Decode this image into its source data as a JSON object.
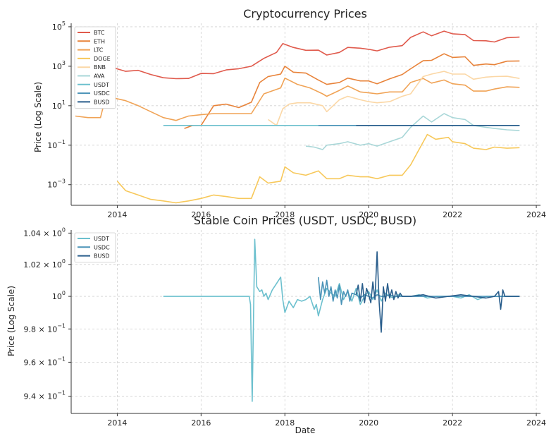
{
  "chart_data": [
    {
      "type": "line",
      "title": "Cryptocurrency Prices",
      "xlabel": "",
      "ylabel": "Price (Log Scale)",
      "yscale": "log",
      "xlim": [
        2012.9,
        2024.1
      ],
      "ylim": [
        9e-05,
        150000
      ],
      "grid": true,
      "legend_position": "top-left",
      "x_ticks": [
        2014,
        2016,
        2018,
        2020,
        2022,
        2024
      ],
      "y_ticks": [
        {
          "value": 0.001,
          "base": "10",
          "exp": "−3"
        },
        {
          "value": 0.1,
          "base": "10",
          "exp": "−1"
        },
        {
          "value": 10,
          "base": "10",
          "exp": "1"
        },
        {
          "value": 1000,
          "base": "10",
          "exp": "3"
        },
        {
          "value": 100000,
          "base": "10",
          "exp": "5"
        }
      ],
      "series": [
        {
          "name": "BTC",
          "color": "#e05a4c",
          "x": [
            2013.0,
            2013.3,
            2013.6,
            2013.9,
            2014.2,
            2014.5,
            2014.8,
            2015.1,
            2015.4,
            2015.7,
            2016.0,
            2016.3,
            2016.6,
            2016.9,
            2017.2,
            2017.5,
            2017.8,
            2017.95,
            2018.2,
            2018.5,
            2018.8,
            2019.0,
            2019.3,
            2019.5,
            2019.8,
            2020.0,
            2020.2,
            2020.5,
            2020.8,
            2021.0,
            2021.3,
            2021.5,
            2021.8,
            2022.0,
            2022.3,
            2022.5,
            2022.8,
            2023.0,
            2023.3,
            2023.6
          ],
          "y": [
            135,
            120,
            125,
            850,
            550,
            620,
            380,
            260,
            235,
            240,
            430,
            420,
            650,
            750,
            1000,
            2500,
            5000,
            14000,
            9000,
            6400,
            6500,
            3700,
            5000,
            9000,
            8200,
            7200,
            6000,
            9200,
            11000,
            29000,
            55000,
            35000,
            60000,
            44000,
            40000,
            20000,
            19500,
            17000,
            28000,
            30000
          ]
        },
        {
          "name": "ETH",
          "color": "#e8833a",
          "x": [
            2015.6,
            2015.8,
            2016.0,
            2016.3,
            2016.6,
            2016.9,
            2017.2,
            2017.4,
            2017.6,
            2017.9,
            2018.0,
            2018.2,
            2018.5,
            2018.8,
            2019.0,
            2019.3,
            2019.5,
            2019.8,
            2020.0,
            2020.2,
            2020.5,
            2020.8,
            2021.0,
            2021.3,
            2021.5,
            2021.8,
            2022.0,
            2022.3,
            2022.5,
            2022.8,
            2023.0,
            2023.3,
            2023.6
          ],
          "y": [
            0.7,
            1.0,
            1.0,
            10,
            12,
            8,
            15,
            150,
            300,
            400,
            1000,
            500,
            450,
            200,
            120,
            150,
            250,
            180,
            180,
            130,
            230,
            380,
            740,
            1900,
            2000,
            4300,
            2800,
            3000,
            1100,
            1300,
            1200,
            1800,
            1850
          ]
        },
        {
          "name": "LTC",
          "color": "#f0a356",
          "x": [
            2013.0,
            2013.3,
            2013.6,
            2013.75,
            2013.9,
            2014.2,
            2014.5,
            2014.8,
            2015.1,
            2015.4,
            2015.7,
            2016.0,
            2016.3,
            2016.6,
            2016.9,
            2017.2,
            2017.5,
            2017.9,
            2018.0,
            2018.3,
            2018.6,
            2018.9,
            2019.0,
            2019.3,
            2019.5,
            2019.8,
            2020.0,
            2020.2,
            2020.5,
            2020.8,
            2021.0,
            2021.3,
            2021.5,
            2021.8,
            2022.0,
            2022.3,
            2022.5,
            2022.8,
            2023.0,
            2023.3,
            2023.6
          ],
          "y": [
            3,
            2.5,
            2.5,
            45,
            25,
            18,
            10,
            5,
            2.5,
            1.8,
            3,
            3.5,
            4,
            4,
            4,
            4,
            40,
            80,
            250,
            120,
            80,
            40,
            30,
            60,
            100,
            50,
            45,
            40,
            50,
            50,
            150,
            240,
            140,
            200,
            130,
            110,
            55,
            55,
            70,
            90,
            85
          ]
        },
        {
          "name": "DOGE",
          "color": "#f7c85a",
          "x": [
            2014.0,
            2014.2,
            2014.5,
            2014.8,
            2015.1,
            2015.4,
            2015.7,
            2016.0,
            2016.3,
            2016.6,
            2016.9,
            2017.2,
            2017.4,
            2017.6,
            2017.9,
            2018.0,
            2018.2,
            2018.5,
            2018.8,
            2019.0,
            2019.3,
            2019.5,
            2019.8,
            2020.0,
            2020.2,
            2020.5,
            2020.8,
            2021.0,
            2021.2,
            2021.4,
            2021.6,
            2021.9,
            2022.0,
            2022.3,
            2022.5,
            2022.8,
            2023.0,
            2023.3,
            2023.6
          ],
          "y": [
            0.0015,
            0.0005,
            0.0003,
            0.00018,
            0.00015,
            0.00012,
            0.00015,
            0.0002,
            0.0003,
            0.00025,
            0.0002,
            0.0002,
            0.0025,
            0.0012,
            0.0015,
            0.008,
            0.004,
            0.003,
            0.005,
            0.002,
            0.002,
            0.003,
            0.0025,
            0.0025,
            0.002,
            0.003,
            0.003,
            0.01,
            0.06,
            0.35,
            0.2,
            0.25,
            0.15,
            0.12,
            0.07,
            0.06,
            0.08,
            0.07,
            0.075
          ]
        },
        {
          "name": "BNB",
          "color": "#fbd7a5",
          "x": [
            2017.6,
            2017.8,
            2017.95,
            2018.1,
            2018.3,
            2018.6,
            2018.9,
            2019.0,
            2019.3,
            2019.5,
            2019.8,
            2020.0,
            2020.2,
            2020.5,
            2020.8,
            2021.0,
            2021.3,
            2021.5,
            2021.8,
            2022.0,
            2022.3,
            2022.5,
            2022.8,
            2023.0,
            2023.3,
            2023.6
          ],
          "y": [
            2,
            1,
            7,
            12,
            14,
            14,
            10,
            5,
            20,
            30,
            20,
            16,
            14,
            16,
            30,
            40,
            300,
            400,
            550,
            400,
            400,
            220,
            280,
            300,
            310,
            240
          ]
        },
        {
          "name": "AVA",
          "color": "#a9d7d8",
          "x": [
            2018.5,
            2018.7,
            2018.9,
            2019.0,
            2019.3,
            2019.5,
            2019.8,
            2020.0,
            2020.2,
            2020.5,
            2020.8,
            2021.0,
            2021.3,
            2021.5,
            2021.8,
            2022.0,
            2022.3,
            2022.5,
            2022.8,
            2023.0,
            2023.3,
            2023.6
          ],
          "y": [
            0.09,
            0.08,
            0.06,
            0.1,
            0.12,
            0.15,
            0.1,
            0.12,
            0.09,
            0.15,
            0.25,
            0.8,
            3,
            1.5,
            4,
            2.5,
            2,
            1,
            0.8,
            0.7,
            0.6,
            0.55
          ]
        },
        {
          "name": "USDT",
          "color": "#6cc0ce",
          "x": [
            2015.1,
            2023.6
          ],
          "y": [
            1.0,
            1.0
          ]
        },
        {
          "name": "USDC",
          "color": "#4a93b7",
          "x": [
            2018.8,
            2023.6
          ],
          "y": [
            1.0,
            1.0
          ]
        },
        {
          "name": "BUSD",
          "color": "#2a5e8c",
          "x": [
            2019.7,
            2023.6
          ],
          "y": [
            1.0,
            1.0
          ]
        }
      ]
    },
    {
      "type": "line",
      "title": "Stable Coin Prices (USDT, USDC, BUSD)",
      "xlabel": "Date",
      "ylabel": "Price (Log Scale)",
      "yscale": "log",
      "xlim": [
        2012.9,
        2024.1
      ],
      "ylim": [
        0.93,
        1.042
      ],
      "grid": true,
      "legend_position": "top-left",
      "x_ticks": [
        2014,
        2016,
        2018,
        2020,
        2022,
        2024
      ],
      "y_ticks": [
        {
          "value": 0.94,
          "mant": "9.4 × ",
          "base": "10",
          "exp": "−1"
        },
        {
          "value": 0.96,
          "mant": "9.6 × ",
          "base": "10",
          "exp": "−1"
        },
        {
          "value": 0.98,
          "mant": "9.8 × ",
          "base": "10",
          "exp": "−1"
        },
        {
          "value": 1.0,
          "mant": "",
          "base": "10",
          "exp": "0"
        },
        {
          "value": 1.02,
          "mant": "1.02 × ",
          "base": "10",
          "exp": "0"
        },
        {
          "value": 1.04,
          "mant": "1.04 × ",
          "base": "10",
          "exp": "0"
        }
      ],
      "series": [
        {
          "name": "USDT",
          "color": "#6cc0ce",
          "x": [
            2015.1,
            2017.15,
            2017.18,
            2017.22,
            2017.28,
            2017.33,
            2017.4,
            2017.45,
            2017.5,
            2017.55,
            2017.6,
            2017.7,
            2017.8,
            2017.9,
            2017.95,
            2018.0,
            2018.1,
            2018.2,
            2018.3,
            2018.4,
            2018.5,
            2018.6,
            2018.7,
            2018.75,
            2018.8,
            2018.9,
            2019.0,
            2019.1,
            2019.2,
            2019.3,
            2019.4,
            2019.5,
            2019.6,
            2019.7,
            2019.8,
            2019.9,
            2020.0,
            2020.1,
            2020.2,
            2020.3,
            2020.4,
            2020.5,
            2020.6,
            2020.7,
            2020.8,
            2021.0,
            2021.2,
            2021.4,
            2021.6,
            2021.8,
            2022.0,
            2022.2,
            2022.4,
            2022.6,
            2022.8,
            2023.0,
            2023.3,
            2023.6
          ],
          "y": [
            1.0,
            1.0,
            0.995,
            0.937,
            1.036,
            1.006,
            1.003,
            1.004,
            1.0,
            1.002,
            0.998,
            1.004,
            1.008,
            1.012,
            0.998,
            0.99,
            0.997,
            0.993,
            0.998,
            0.997,
            0.998,
            1.0,
            0.992,
            0.995,
            0.988,
            0.998,
            1.005,
            1.002,
            1.0,
            1.008,
            0.998,
            1.003,
            0.997,
            1.005,
            0.995,
            1.0,
            1.003,
            0.998,
            1.004,
            0.997,
            1.002,
            1.0,
            0.999,
            1.001,
            1.0,
            1.0,
            1.001,
            0.999,
            1.0,
            1.0,
            1.0,
            0.999,
            1.001,
            0.998,
            1.0,
            1.0,
            1.0,
            1.0
          ]
        },
        {
          "name": "USDC",
          "color": "#4a93b7",
          "x": [
            2018.8,
            2018.85,
            2018.9,
            2018.95,
            2019.0,
            2019.05,
            2019.1,
            2019.15,
            2019.2,
            2019.25,
            2019.3,
            2019.35,
            2019.4,
            2019.45,
            2019.5,
            2019.55,
            2019.6,
            2019.7,
            2019.8,
            2019.9,
            2020.0,
            2020.1,
            2020.2,
            2020.3,
            2020.4,
            2020.5,
            2020.6,
            2020.7,
            2020.8,
            2021.0,
            2021.5,
            2022.0,
            2022.5,
            2023.0,
            2023.6
          ],
          "y": [
            1.012,
            0.998,
            1.009,
            1.002,
            1.01,
            1.0,
            1.006,
            0.997,
            1.004,
            0.999,
            1.007,
            0.995,
            1.003,
            1.0,
            1.004,
            0.997,
            1.002,
            1.001,
            0.999,
            1.001,
            1.0,
            0.999,
            1.001,
            1.0,
            1.0,
            1.001,
            1.0,
            1.0,
            1.0,
            1.0,
            1.0,
            1.0,
            1.0,
            1.0,
            1.0
          ]
        },
        {
          "name": "BUSD",
          "color": "#2a5e8c",
          "x": [
            2019.7,
            2019.75,
            2019.8,
            2019.85,
            2019.9,
            2019.95,
            2020.0,
            2020.05,
            2020.1,
            2020.15,
            2020.2,
            2020.25,
            2020.3,
            2020.35,
            2020.4,
            2020.45,
            2020.5,
            2020.55,
            2020.6,
            2020.65,
            2020.7,
            2020.75,
            2020.8,
            2021.0,
            2021.3,
            2021.6,
            2021.9,
            2022.2,
            2022.5,
            2022.8,
            2023.0,
            2023.1,
            2023.15,
            2023.2,
            2023.25,
            2023.4,
            2023.6
          ],
          "y": [
            1.001,
            1.007,
            0.997,
            1.008,
            0.996,
            1.005,
            1.001,
            0.996,
            1.009,
            0.998,
            1.028,
            0.996,
            0.978,
            1.006,
            0.997,
            1.008,
            0.999,
            1.004,
            0.998,
            1.003,
            0.999,
            1.002,
            1.0,
            1.0,
            1.001,
            0.999,
            1.0,
            1.001,
            1.0,
            0.999,
            1.0,
            1.003,
            0.992,
            1.004,
            1.0,
            1.0,
            1.0
          ]
        }
      ]
    }
  ]
}
